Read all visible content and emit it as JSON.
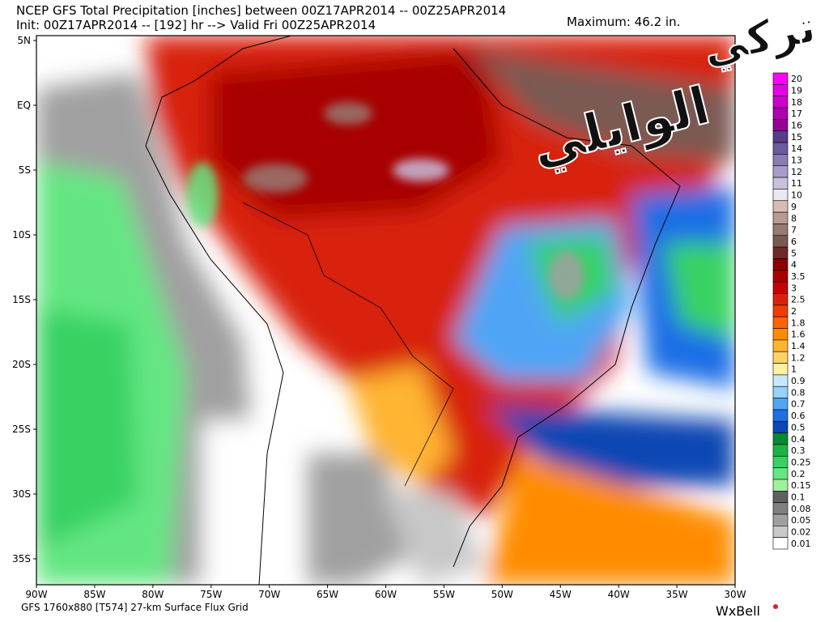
{
  "header": {
    "title": "NCEP GFS Total Precipitation [inches] between 00Z17APR2014 -- 00Z25APR2014",
    "subtitle": "Init: 00Z17APR2014 -- [192] hr --> Valid Fri 00Z25APR2014",
    "maximum": "Maximum:   46.2 in."
  },
  "watermark": {
    "line1": "تركي",
    "line2": "الوايلي"
  },
  "latitude_labels": [
    "5N",
    "EQ",
    "5S",
    "10S",
    "15S",
    "20S",
    "25S",
    "30S",
    "35S"
  ],
  "longitude_labels": [
    "90W",
    "85W",
    "80W",
    "75W",
    "70W",
    "65W",
    "60W",
    "55W",
    "50W",
    "45W",
    "40W",
    "35W",
    "30W"
  ],
  "legend": {
    "items": [
      {
        "label": "20",
        "color": "#ff00ff"
      },
      {
        "label": "19",
        "color": "#e600e6"
      },
      {
        "label": "18",
        "color": "#cc00cc"
      },
      {
        "label": "17",
        "color": "#b000b0"
      },
      {
        "label": "16",
        "color": "#930093"
      },
      {
        "label": "15",
        "color": "#5a3a8c"
      },
      {
        "label": "14",
        "color": "#6c5a9e"
      },
      {
        "label": "13",
        "color": "#8a7cb4"
      },
      {
        "label": "12",
        "color": "#a89cc8"
      },
      {
        "label": "11",
        "color": "#c8c0dc"
      },
      {
        "label": "10",
        "color": "#ece8f2"
      },
      {
        "label": "9",
        "color": "#d8bcb4"
      },
      {
        "label": "8",
        "color": "#b89a92"
      },
      {
        "label": "7",
        "color": "#987a72"
      },
      {
        "label": "6",
        "color": "#7a5a52"
      },
      {
        "label": "5",
        "color": "#6e2a26"
      },
      {
        "label": "4",
        "color": "#8c0000"
      },
      {
        "label": "3.5",
        "color": "#a80000"
      },
      {
        "label": "3",
        "color": "#c40000"
      },
      {
        "label": "2.5",
        "color": "#dc2010"
      },
      {
        "label": "2",
        "color": "#f03c00"
      },
      {
        "label": "1.8",
        "color": "#ff6400"
      },
      {
        "label": "1.6",
        "color": "#ff8c00"
      },
      {
        "label": "1.4",
        "color": "#ffb432"
      },
      {
        "label": "1.2",
        "color": "#ffd264"
      },
      {
        "label": "1",
        "color": "#fff0a0"
      },
      {
        "label": "0.9",
        "color": "#c8e8ff"
      },
      {
        "label": "0.8",
        "color": "#96d2fa"
      },
      {
        "label": "0.7",
        "color": "#50a5f5"
      },
      {
        "label": "0.6",
        "color": "#1e6ee6"
      },
      {
        "label": "0.5",
        "color": "#0a46b4"
      },
      {
        "label": "0.4",
        "color": "#008c30"
      },
      {
        "label": "0.3",
        "color": "#19b446"
      },
      {
        "label": "0.25",
        "color": "#37d264"
      },
      {
        "label": "0.2",
        "color": "#64e682"
      },
      {
        "label": "0.15",
        "color": "#a0f0a0"
      },
      {
        "label": "0.1",
        "color": "#606060"
      },
      {
        "label": "0.08",
        "color": "#808080"
      },
      {
        "label": "0.05",
        "color": "#a0a0a0"
      },
      {
        "label": "0.02",
        "color": "#c8c8c8"
      },
      {
        "label": "0.01",
        "color": "#ffffff"
      }
    ]
  },
  "footer": {
    "grid": "GFS 1760x880 [T574] 27-km Surface Flux Grid",
    "brand": "WxBell"
  }
}
